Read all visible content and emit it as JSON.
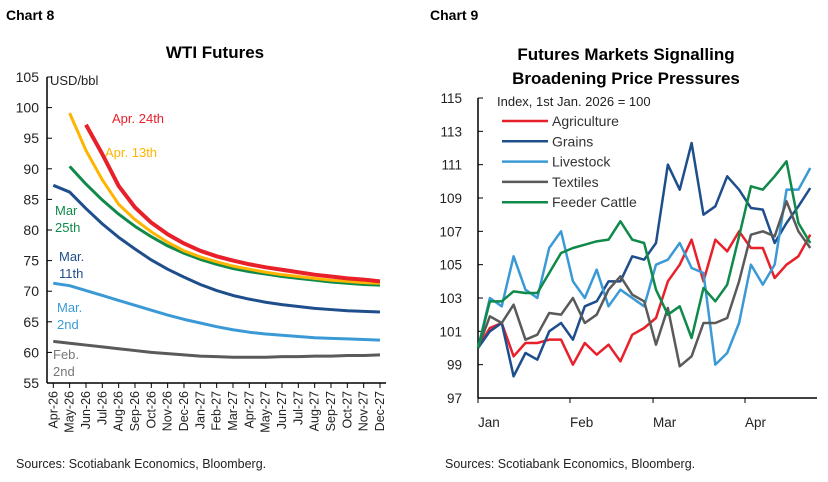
{
  "chart_data": [
    {
      "type": "line",
      "label": "Chart 8",
      "title": "WTI Futures",
      "ylabel": "USD/bbl",
      "ylim": [
        55,
        105
      ],
      "yticks": [
        55,
        60,
        65,
        70,
        75,
        80,
        85,
        90,
        95,
        100,
        105
      ],
      "categories": [
        "Apr-26",
        "May-26",
        "Jun-26",
        "Jul-26",
        "Aug-26",
        "Sep-26",
        "Oct-26",
        "Nov-26",
        "Dec-26",
        "Jan-27",
        "Feb-27",
        "Mar-27",
        "Apr-27",
        "May-27",
        "Jun-27",
        "Jul-27",
        "Aug-27",
        "Sep-27",
        "Oct-27",
        "Nov-27",
        "Dec-27"
      ],
      "series": [
        {
          "name": "Feb. 2nd",
          "color": "#5a5a5a",
          "values": [
            61.8,
            61.5,
            61.2,
            60.9,
            60.6,
            60.3,
            60.0,
            59.8,
            59.6,
            59.4,
            59.3,
            59.2,
            59.2,
            59.2,
            59.3,
            59.3,
            59.4,
            59.4,
            59.5,
            59.5,
            59.6
          ]
        },
        {
          "name": "Mar. 2nd",
          "color": "#3b9ad6",
          "values": [
            71.3,
            70.9,
            70.1,
            69.3,
            68.5,
            67.7,
            66.9,
            66.1,
            65.4,
            64.8,
            64.2,
            63.7,
            63.3,
            63.0,
            62.8,
            62.6,
            62.4,
            62.3,
            62.2,
            62.1,
            62.0
          ]
        },
        {
          "name": "Mar. 11th",
          "color": "#1f4e8c",
          "values": [
            87.3,
            86.2,
            83.5,
            81.0,
            78.8,
            76.9,
            75.1,
            73.6,
            72.3,
            71.1,
            70.1,
            69.3,
            68.7,
            68.2,
            67.8,
            67.5,
            67.2,
            67.0,
            66.8,
            66.7,
            66.6
          ]
        },
        {
          "name": "Mar 25th",
          "color": "#0f8a4a",
          "values": [
            null,
            90.4,
            87.5,
            84.9,
            82.6,
            80.6,
            78.9,
            77.4,
            76.2,
            75.2,
            74.4,
            73.7,
            73.2,
            72.8,
            72.4,
            72.1,
            71.8,
            71.5,
            71.3,
            71.1,
            71.0
          ]
        },
        {
          "name": "Apr. 13th",
          "color": "#ffb400",
          "values": [
            null,
            99.1,
            93.0,
            88.2,
            84.2,
            81.7,
            79.7,
            78.0,
            76.6,
            75.6,
            74.8,
            74.1,
            73.6,
            73.1,
            72.7,
            72.4,
            72.1,
            71.8,
            71.6,
            71.4,
            71.3
          ]
        },
        {
          "name": "Apr. 24th",
          "color": "#e8202a",
          "values": [
            null,
            null,
            97.2,
            92.4,
            87.2,
            83.7,
            81.2,
            79.3,
            77.8,
            76.6,
            75.7,
            75.0,
            74.4,
            73.9,
            73.5,
            73.1,
            72.7,
            72.4,
            72.1,
            71.9,
            71.6
          ]
        }
      ],
      "series_labels": {
        "Feb. 2nd": [
          "Feb.",
          "2nd"
        ],
        "Mar. 2nd": [
          "Mar.",
          "2nd"
        ],
        "Mar. 11th": [
          "Mar.",
          "11th"
        ],
        "Mar 25th": [
          "Mar",
          "25th"
        ],
        "Apr. 13th": [
          "Apr. 13th"
        ],
        "Apr. 24th": [
          "Apr. 24th"
        ]
      },
      "source": "Sources: Scotiabank Economics, Bloomberg."
    },
    {
      "type": "line",
      "label": "Chart 9",
      "title": [
        "Futures Markets Signalling",
        "Broadening Price Pressures"
      ],
      "ylabel": "Index, 1st Jan. 2026 = 100",
      "ylim": [
        97,
        115
      ],
      "yticks": [
        97,
        99,
        101,
        103,
        105,
        107,
        109,
        111,
        113,
        115
      ],
      "xticks": [
        "Jan",
        "Feb",
        "Mar",
        "Apr"
      ],
      "x": [
        "Jan 1",
        "Jan 5",
        "Jan 9",
        "Jan 13",
        "Jan 17",
        "Jan 21",
        "Jan 25",
        "Jan 29",
        "Feb 2",
        "Feb 6",
        "Feb 10",
        "Feb 14",
        "Feb 18",
        "Feb 22",
        "Feb 26",
        "Mar 2",
        "Mar 6",
        "Mar 10",
        "Mar 14",
        "Mar 18",
        "Mar 22",
        "Mar 26",
        "Mar 30",
        "Apr 3",
        "Apr 7",
        "Apr 11",
        "Apr 15",
        "Apr 19",
        "Apr 23"
      ],
      "legend_position": "top-left",
      "series": [
        {
          "name": "Agriculture",
          "color": "#e8202a",
          "values": [
            100,
            101.2,
            101.5,
            99.5,
            100.3,
            100.3,
            100.5,
            100.5,
            99.0,
            100.3,
            99.6,
            100.2,
            99.2,
            100.8,
            101.2,
            101.8,
            104.0,
            105.0,
            106.5,
            104.0,
            106.5,
            105.8,
            107.0,
            106.0,
            106.0,
            104.2,
            105.0,
            105.5,
            106.8
          ]
        },
        {
          "name": "Grains",
          "color": "#1f4e8c",
          "values": [
            100,
            101.0,
            101.5,
            98.3,
            99.7,
            99.3,
            101.0,
            101.5,
            100.5,
            102.5,
            102.8,
            104.0,
            104.0,
            105.5,
            105.3,
            106.3,
            111.0,
            109.5,
            112.3,
            108.0,
            108.5,
            110.3,
            109.5,
            108.4,
            108.3,
            106.3,
            107.5,
            108.5,
            109.6
          ]
        },
        {
          "name": "Livestock",
          "color": "#3b9ad6",
          "values": [
            100,
            103.0,
            102.5,
            105.5,
            103.5,
            103.0,
            106.0,
            107.0,
            104.0,
            103.0,
            104.7,
            102.5,
            103.5,
            103.0,
            102.5,
            105.0,
            105.3,
            106.3,
            104.8,
            104.5,
            99.0,
            99.7,
            101.5,
            105.0,
            103.8,
            105.0,
            109.5,
            109.5,
            110.8
          ]
        },
        {
          "name": "Textiles",
          "color": "#5a5a5a",
          "values": [
            100,
            101.9,
            101.5,
            102.6,
            100.5,
            100.8,
            102.1,
            102.0,
            103.0,
            101.5,
            102.0,
            103.5,
            104.3,
            103.2,
            102.8,
            100.2,
            102.4,
            98.9,
            99.5,
            101.5,
            101.5,
            101.8,
            104.0,
            106.8,
            107.0,
            106.7,
            108.8,
            107.0,
            106.0
          ]
        },
        {
          "name": "Feeder Cattle",
          "color": "#0f8a4a",
          "values": [
            100,
            102.8,
            102.8,
            103.4,
            103.3,
            103.3,
            104.5,
            105.7,
            106.0,
            106.2,
            106.4,
            106.5,
            107.6,
            106.5,
            106.3,
            103.5,
            102.0,
            102.5,
            100.6,
            103.6,
            102.8,
            103.8,
            106.7,
            109.7,
            109.5,
            110.3,
            111.2,
            107.5,
            106.3
          ]
        }
      ],
      "source": "Sources: Scotiabank Economics, Bloomberg."
    }
  ]
}
